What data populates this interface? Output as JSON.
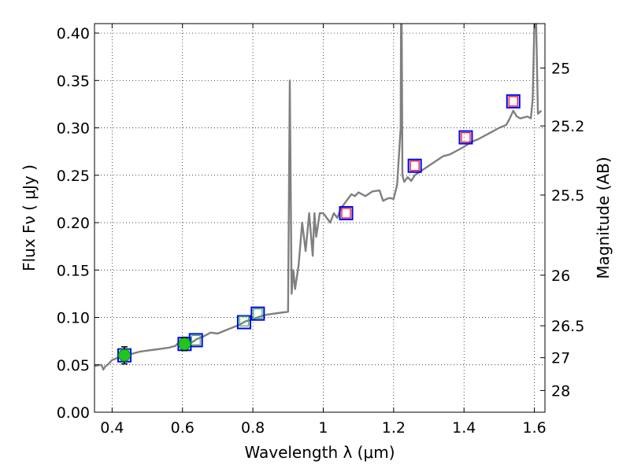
{
  "chart_data": {
    "type": "line",
    "xlabel": "Wavelength  λ (μm)",
    "ylabel": "Flux  Fν  ( μJy )",
    "ylabel_right": "Magnitude (AB)",
    "xlim": [
      0.35,
      1.63
    ],
    "ylim": [
      0.0,
      0.41
    ],
    "grid": true,
    "x_ticks": [
      0.4,
      0.6,
      0.8,
      1.0,
      1.2,
      1.4,
      1.6
    ],
    "x_tick_labels": [
      "0.4",
      "0.6",
      "0.8",
      "1",
      "1.2",
      "1.4",
      "1.6"
    ],
    "y_ticks": [
      0.0,
      0.05,
      0.1,
      0.15,
      0.2,
      0.25,
      0.3,
      0.35,
      0.4
    ],
    "y_tick_labels": [
      "0.00",
      "0.05",
      "0.10",
      "0.15",
      "0.20",
      "0.25",
      "0.30",
      "0.35",
      "0.40"
    ],
    "mag_ticks": [
      25,
      25.2,
      25.5,
      26,
      26.5,
      27,
      28
    ],
    "mag_tick_labels": [
      "25",
      "25.2",
      "25.5",
      "26",
      "26.5",
      "27",
      "28"
    ],
    "model_spectrum": {
      "color": "#808080",
      "x": [
        0.35,
        0.37,
        0.375,
        0.38,
        0.39,
        0.4,
        0.42,
        0.44,
        0.46,
        0.48,
        0.5,
        0.52,
        0.54,
        0.56,
        0.58,
        0.59,
        0.6,
        0.62,
        0.64,
        0.66,
        0.68,
        0.7,
        0.72,
        0.74,
        0.76,
        0.78,
        0.8,
        0.82,
        0.84,
        0.86,
        0.88,
        0.9,
        0.905,
        0.91,
        0.915,
        0.92,
        0.93,
        0.94,
        0.95,
        0.96,
        0.97,
        0.975,
        0.98,
        0.99,
        1.0,
        1.01,
        1.02,
        1.03,
        1.04,
        1.05,
        1.06,
        1.07,
        1.08,
        1.09,
        1.1,
        1.12,
        1.14,
        1.16,
        1.17,
        1.18,
        1.19,
        1.2,
        1.21,
        1.22,
        1.221,
        1.223,
        1.225,
        1.23,
        1.24,
        1.25,
        1.26,
        1.28,
        1.3,
        1.32,
        1.34,
        1.36,
        1.38,
        1.4,
        1.42,
        1.44,
        1.46,
        1.48,
        1.5,
        1.52,
        1.53,
        1.54,
        1.55,
        1.56,
        1.57,
        1.58,
        1.59,
        1.595,
        1.6,
        1.605,
        1.61,
        1.62
      ],
      "y": [
        0.049,
        0.05,
        0.045,
        0.048,
        0.051,
        0.055,
        0.058,
        0.06,
        0.062,
        0.064,
        0.065,
        0.066,
        0.067,
        0.068,
        0.07,
        0.074,
        0.07,
        0.072,
        0.077,
        0.08,
        0.084,
        0.083,
        0.086,
        0.089,
        0.092,
        0.096,
        0.098,
        0.101,
        0.103,
        0.104,
        0.105,
        0.106,
        0.35,
        0.125,
        0.15,
        0.13,
        0.155,
        0.2,
        0.17,
        0.21,
        0.165,
        0.21,
        0.185,
        0.21,
        0.21,
        0.205,
        0.2,
        0.21,
        0.205,
        0.215,
        0.22,
        0.225,
        0.23,
        0.228,
        0.232,
        0.228,
        0.233,
        0.234,
        0.223,
        0.225,
        0.226,
        0.225,
        0.24,
        0.3,
        0.41,
        0.41,
        0.25,
        0.243,
        0.248,
        0.244,
        0.25,
        0.255,
        0.26,
        0.265,
        0.27,
        0.272,
        0.276,
        0.28,
        0.285,
        0.288,
        0.292,
        0.296,
        0.3,
        0.303,
        0.31,
        0.318,
        0.312,
        0.31,
        0.311,
        0.312,
        0.31,
        0.33,
        0.41,
        0.41,
        0.315,
        0.318
      ]
    },
    "band_flux": {
      "color": "#2ebf2e",
      "x": [
        0.435,
        0.606,
        0.638,
        0.775,
        0.814,
        1.065,
        1.26,
        1.405,
        1.54
      ],
      "y": [
        0.061,
        0.072,
        0.076,
        0.096,
        0.104,
        0.21,
        0.26,
        0.289,
        0.327
      ]
    },
    "model_band_flux": {
      "edgecolor": "#0000ff",
      "x": [
        0.435,
        0.606,
        0.638,
        0.775,
        0.814,
        1.065,
        1.26,
        1.405,
        1.54
      ],
      "y": [
        0.06,
        0.072,
        0.076,
        0.095,
        0.104,
        0.21,
        0.26,
        0.29,
        0.328
      ]
    },
    "observed_flux": {
      "color": "#22c422",
      "x": [
        0.435,
        0.606
      ],
      "y": [
        0.06,
        0.072
      ],
      "err": [
        0.009,
        0.007
      ]
    },
    "upper_limits": {
      "color": "#ff0000",
      "x": [
        1.065,
        1.26,
        1.405,
        1.54
      ],
      "y": [
        0.21,
        0.26,
        0.29,
        0.328
      ]
    }
  }
}
